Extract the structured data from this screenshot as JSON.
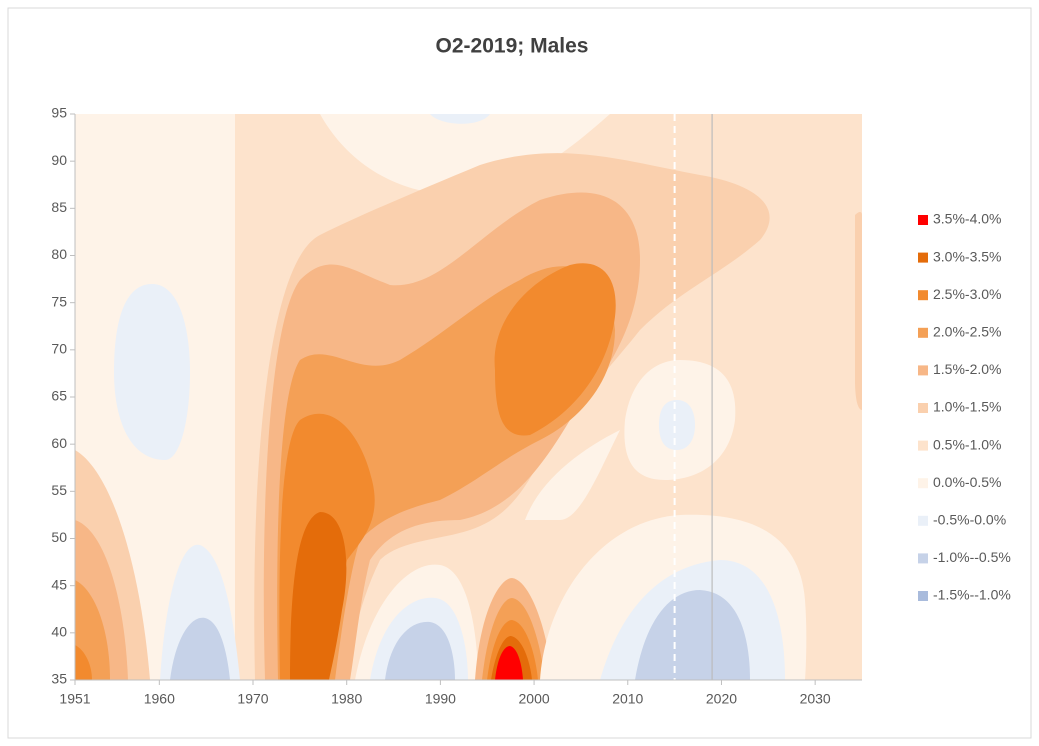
{
  "chart_data": {
    "type": "contour",
    "title": "O2-2019; Males",
    "xlim": [
      1951,
      2035
    ],
    "xticks": [
      1951,
      1960,
      1970,
      1980,
      1990,
      2000,
      2010,
      2020,
      2030
    ],
    "ylim": [
      35,
      95
    ],
    "yticks": [
      35,
      40,
      45,
      50,
      55,
      60,
      65,
      70,
      75,
      80,
      85,
      90,
      95
    ],
    "series": [
      {
        "name": "3.5%-4.0%",
        "color": "#ff0000"
      },
      {
        "name": "3.0%-3.5%",
        "color": "#e46c0a"
      },
      {
        "name": "2.5%-3.0%",
        "color": "#f28a2e"
      },
      {
        "name": "2.0%-2.5%",
        "color": "#f4a056"
      },
      {
        "name": "1.5%-2.0%",
        "color": "#f7b787"
      },
      {
        "name": "1.0%-1.5%",
        "color": "#fad0ae"
      },
      {
        "name": "0.5%-1.0%",
        "color": "#fde3cc"
      },
      {
        "name": "0.0%-0.5%",
        "color": "#fef3e8"
      },
      {
        "name": "-0.5%-0.0%",
        "color": "#eaf0f8"
      },
      {
        "name": "-1.0%--0.5%",
        "color": "#c6d2e8"
      },
      {
        "name": "-1.5%--1.0%",
        "color": "#a9bbdc"
      }
    ],
    "reference_lines": [
      {
        "x": 2015,
        "style": "dashed",
        "color": "#ffffff"
      },
      {
        "x": 2019,
        "style": "solid",
        "color": "#bcbcbc"
      }
    ]
  }
}
